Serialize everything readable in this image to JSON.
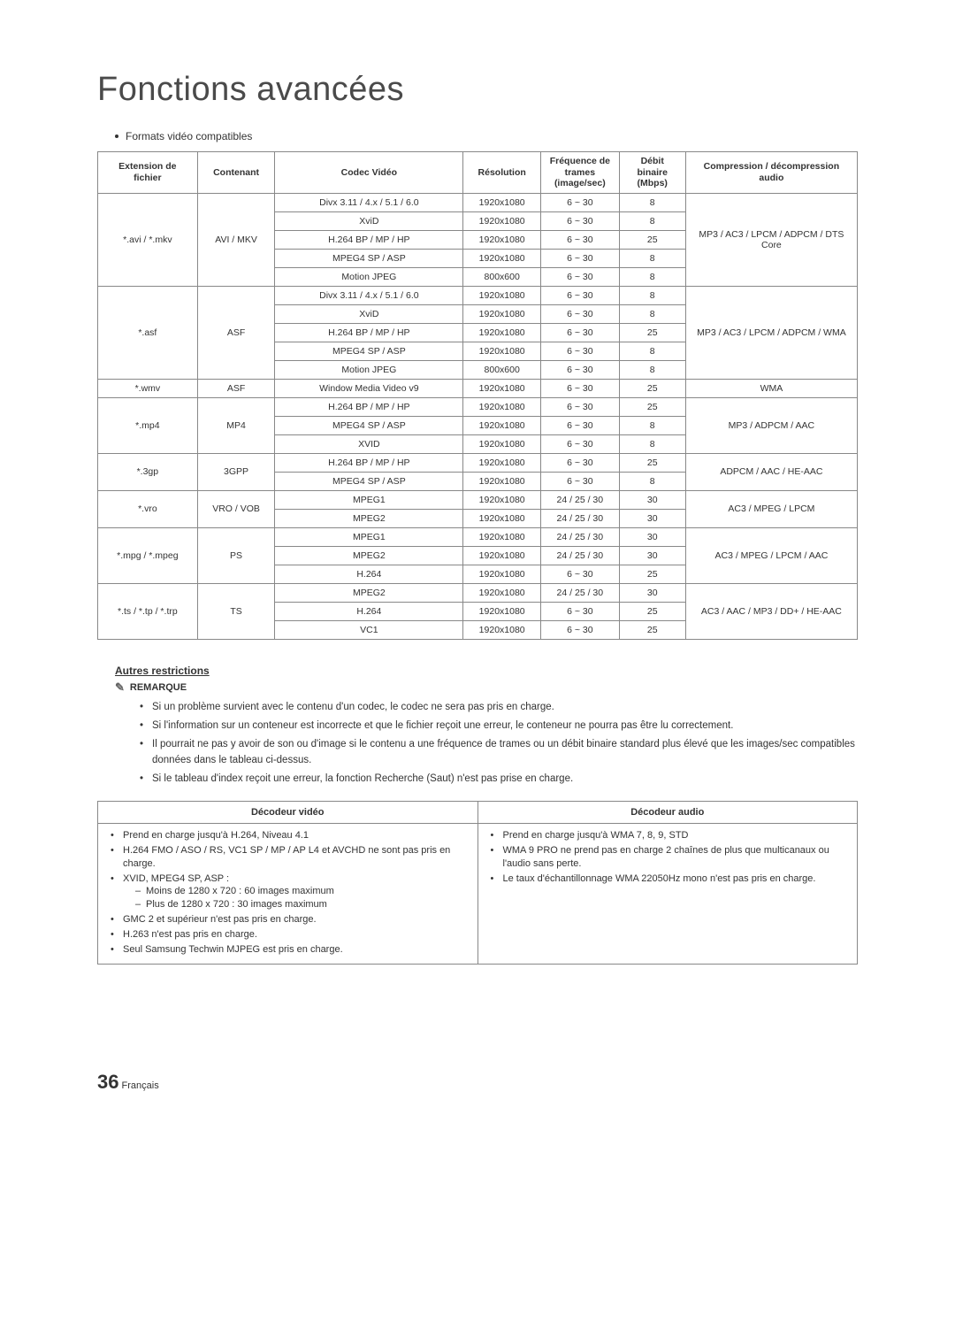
{
  "title": "Fonctions avancées",
  "subtitle": "Formats vidéo compatibles",
  "table_header": {
    "ext": "Extension de fichier",
    "container": "Contenant",
    "codec": "Codec Vidéo",
    "resolution": "Résolution",
    "fps": "Fréquence de trames (image/sec)",
    "bitrate": "Débit binaire (Mbps)",
    "audio": "Compression / décompression audio"
  },
  "groups": [
    {
      "ext": "*.avi / *.mkv",
      "container": "AVI / MKV",
      "audio": "MP3 / AC3 / LPCM / ADPCM / DTS Core",
      "rows": [
        {
          "codec": "Divx 3.11 / 4.x / 5.1 / 6.0",
          "res": "1920x1080",
          "fps": "6 ~ 30",
          "br": "8"
        },
        {
          "codec": "XviD",
          "res": "1920x1080",
          "fps": "6 ~ 30",
          "br": "8"
        },
        {
          "codec": "H.264 BP / MP / HP",
          "res": "1920x1080",
          "fps": "6 ~ 30",
          "br": "25"
        },
        {
          "codec": "MPEG4 SP / ASP",
          "res": "1920x1080",
          "fps": "6 ~ 30",
          "br": "8"
        },
        {
          "codec": "Motion JPEG",
          "res": "800x600",
          "fps": "6 ~ 30",
          "br": "8"
        }
      ]
    },
    {
      "ext": "*.asf",
      "container": "ASF",
      "audio": "MP3 / AC3 / LPCM / ADPCM / WMA",
      "rows": [
        {
          "codec": "Divx 3.11 / 4.x / 5.1 / 6.0",
          "res": "1920x1080",
          "fps": "6 ~ 30",
          "br": "8"
        },
        {
          "codec": "XviD",
          "res": "1920x1080",
          "fps": "6 ~ 30",
          "br": "8"
        },
        {
          "codec": "H.264 BP / MP / HP",
          "res": "1920x1080",
          "fps": "6 ~ 30",
          "br": "25"
        },
        {
          "codec": "MPEG4 SP / ASP",
          "res": "1920x1080",
          "fps": "6 ~ 30",
          "br": "8"
        },
        {
          "codec": "Motion JPEG",
          "res": "800x600",
          "fps": "6 ~ 30",
          "br": "8"
        }
      ]
    },
    {
      "ext": "*.wmv",
      "container": "ASF",
      "audio": "WMA",
      "rows": [
        {
          "codec": "Window Media Video v9",
          "res": "1920x1080",
          "fps": "6 ~ 30",
          "br": "25"
        }
      ]
    },
    {
      "ext": "*.mp4",
      "container": "MP4",
      "audio": "MP3 / ADPCM / AAC",
      "rows": [
        {
          "codec": "H.264 BP / MP / HP",
          "res": "1920x1080",
          "fps": "6 ~ 30",
          "br": "25"
        },
        {
          "codec": "MPEG4 SP / ASP",
          "res": "1920x1080",
          "fps": "6 ~ 30",
          "br": "8"
        },
        {
          "codec": "XVID",
          "res": "1920x1080",
          "fps": "6 ~ 30",
          "br": "8"
        }
      ]
    },
    {
      "ext": "*.3gp",
      "container": "3GPP",
      "audio": "ADPCM / AAC / HE-AAC",
      "rows": [
        {
          "codec": "H.264 BP / MP / HP",
          "res": "1920x1080",
          "fps": "6 ~ 30",
          "br": "25"
        },
        {
          "codec": "MPEG4 SP / ASP",
          "res": "1920x1080",
          "fps": "6 ~ 30",
          "br": "8"
        }
      ]
    },
    {
      "ext": "*.vro",
      "container": "VRO / VOB",
      "audio": "AC3 / MPEG / LPCM",
      "rows": [
        {
          "codec": "MPEG1",
          "res": "1920x1080",
          "fps": "24 / 25 / 30",
          "br": "30"
        },
        {
          "codec": "MPEG2",
          "res": "1920x1080",
          "fps": "24 / 25 / 30",
          "br": "30"
        }
      ]
    },
    {
      "ext": "*.mpg / *.mpeg",
      "container": "PS",
      "audio": "AC3 / MPEG / LPCM / AAC",
      "rows": [
        {
          "codec": "MPEG1",
          "res": "1920x1080",
          "fps": "24 / 25 / 30",
          "br": "30"
        },
        {
          "codec": "MPEG2",
          "res": "1920x1080",
          "fps": "24 / 25 / 30",
          "br": "30"
        },
        {
          "codec": "H.264",
          "res": "1920x1080",
          "fps": "6 ~ 30",
          "br": "25"
        }
      ]
    },
    {
      "ext": "*.ts / *.tp / *.trp",
      "container": "TS",
      "audio": "AC3 / AAC / MP3 / DD+ / HE-AAC",
      "rows": [
        {
          "codec": "MPEG2",
          "res": "1920x1080",
          "fps": "24 / 25 / 30",
          "br": "30"
        },
        {
          "codec": "H.264",
          "res": "1920x1080",
          "fps": "6 ~ 30",
          "br": "25"
        },
        {
          "codec": "VC1",
          "res": "1920x1080",
          "fps": "6 ~ 30",
          "br": "25"
        }
      ]
    }
  ],
  "restrictions_heading": "Autres restrictions",
  "remark_label": "REMARQUE",
  "remarks": [
    "Si un problème survient avec le contenu d'un codec, le codec ne sera pas pris en charge.",
    "Si l'information sur un conteneur est incorrecte et que le fichier reçoit une erreur, le conteneur ne pourra pas être lu correctement.",
    "Il pourrait ne pas y avoir de son ou d'image si le contenu a une fréquence de trames ou un débit binaire standard plus élevé que les images/sec compatibles données dans le tableau ci-dessus.",
    "Si le tableau d'index reçoit une erreur, la fonction Recherche (Saut) n'est pas prise en charge."
  ],
  "decoder_header": {
    "video": "Décodeur vidéo",
    "audio": "Décodeur audio"
  },
  "decoder_video": [
    {
      "text": "Prend en charge jusqu'à H.264, Niveau 4.1"
    },
    {
      "text": "H.264 FMO / ASO / RS, VC1 SP / MP / AP L4 et AVCHD ne sont pas pris en charge."
    },
    {
      "text": "XVID, MPEG4 SP, ASP :",
      "sub": [
        "Moins de 1280 x 720 : 60 images maximum",
        "Plus de 1280 x 720 : 30 images maximum"
      ]
    },
    {
      "text": "GMC 2 et supérieur n'est pas pris en charge."
    },
    {
      "text": "H.263 n'est pas pris en charge."
    },
    {
      "text": "Seul Samsung Techwin MJPEG est pris en charge."
    }
  ],
  "decoder_audio": [
    {
      "text": "Prend en charge jusqu'à WMA 7, 8, 9, STD"
    },
    {
      "text": "WMA 9 PRO ne prend pas en charge 2 chaînes de plus que multicanaux ou l'audio sans perte."
    },
    {
      "text": "Le taux d'échantillonnage WMA 22050Hz mono n'est pas pris en charge."
    }
  ],
  "footer": {
    "page": "36",
    "lang": "Français"
  },
  "colors": {
    "text": "#333333",
    "border": "#888888",
    "bg": "#ffffff"
  },
  "col_widths": {
    "ext": "90",
    "container": "70",
    "codec": "170",
    "res": "70",
    "fps": "70",
    "br": "60",
    "audio": "155"
  }
}
